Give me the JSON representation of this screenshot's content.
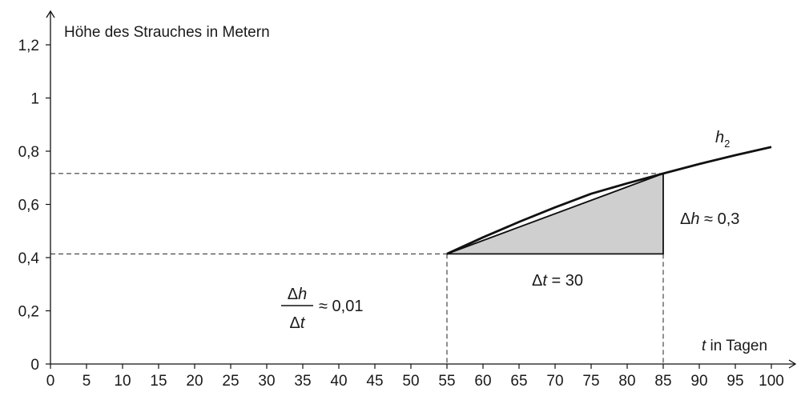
{
  "chart_data": {
    "type": "line",
    "ylabel": "Höhe des Strauches in Metern",
    "xlabel_var": "t",
    "xlabel_text": " in Tagen",
    "x_ticks": [
      0,
      5,
      10,
      15,
      20,
      25,
      30,
      35,
      40,
      45,
      50,
      55,
      60,
      65,
      70,
      75,
      80,
      85,
      90,
      95,
      100
    ],
    "y_ticks": [
      0,
      0.2,
      0.4,
      0.6,
      0.8,
      1,
      1.2
    ],
    "y_tick_labels": [
      "0",
      "0,2",
      "0,4",
      "0,6",
      "0,8",
      "1",
      "1,2"
    ],
    "xlim": [
      0,
      100
    ],
    "ylim": [
      0,
      1.2
    ],
    "grid": false,
    "series": [
      {
        "name": "h",
        "name_subscript": "2",
        "x": [
          55,
          60,
          65,
          70,
          75,
          80,
          85,
          90,
          95,
          100
        ],
        "y": [
          0.414,
          0.476,
          0.534,
          0.589,
          0.64,
          0.679,
          0.716,
          0.752,
          0.785,
          0.816
        ]
      }
    ],
    "secant": {
      "x1": 55,
      "y1": 0.414,
      "x2": 85,
      "y2": 0.716
    },
    "annotations": {
      "delta_t_prefix": "Δ",
      "delta_t_var": "t",
      "delta_t_rest": " = 30",
      "delta_h_prefix": "Δ",
      "delta_h_var": "h",
      "delta_h_rest": " ≈ 0,3",
      "frac_num_prefix": "Δ",
      "frac_num_var": "h",
      "frac_den_prefix": "Δ",
      "frac_den_var": "t",
      "frac_rest": "≈ 0,01"
    },
    "colors": {
      "curve": "#111111",
      "fill": "#cfcfcf",
      "axis": "#111111"
    }
  }
}
